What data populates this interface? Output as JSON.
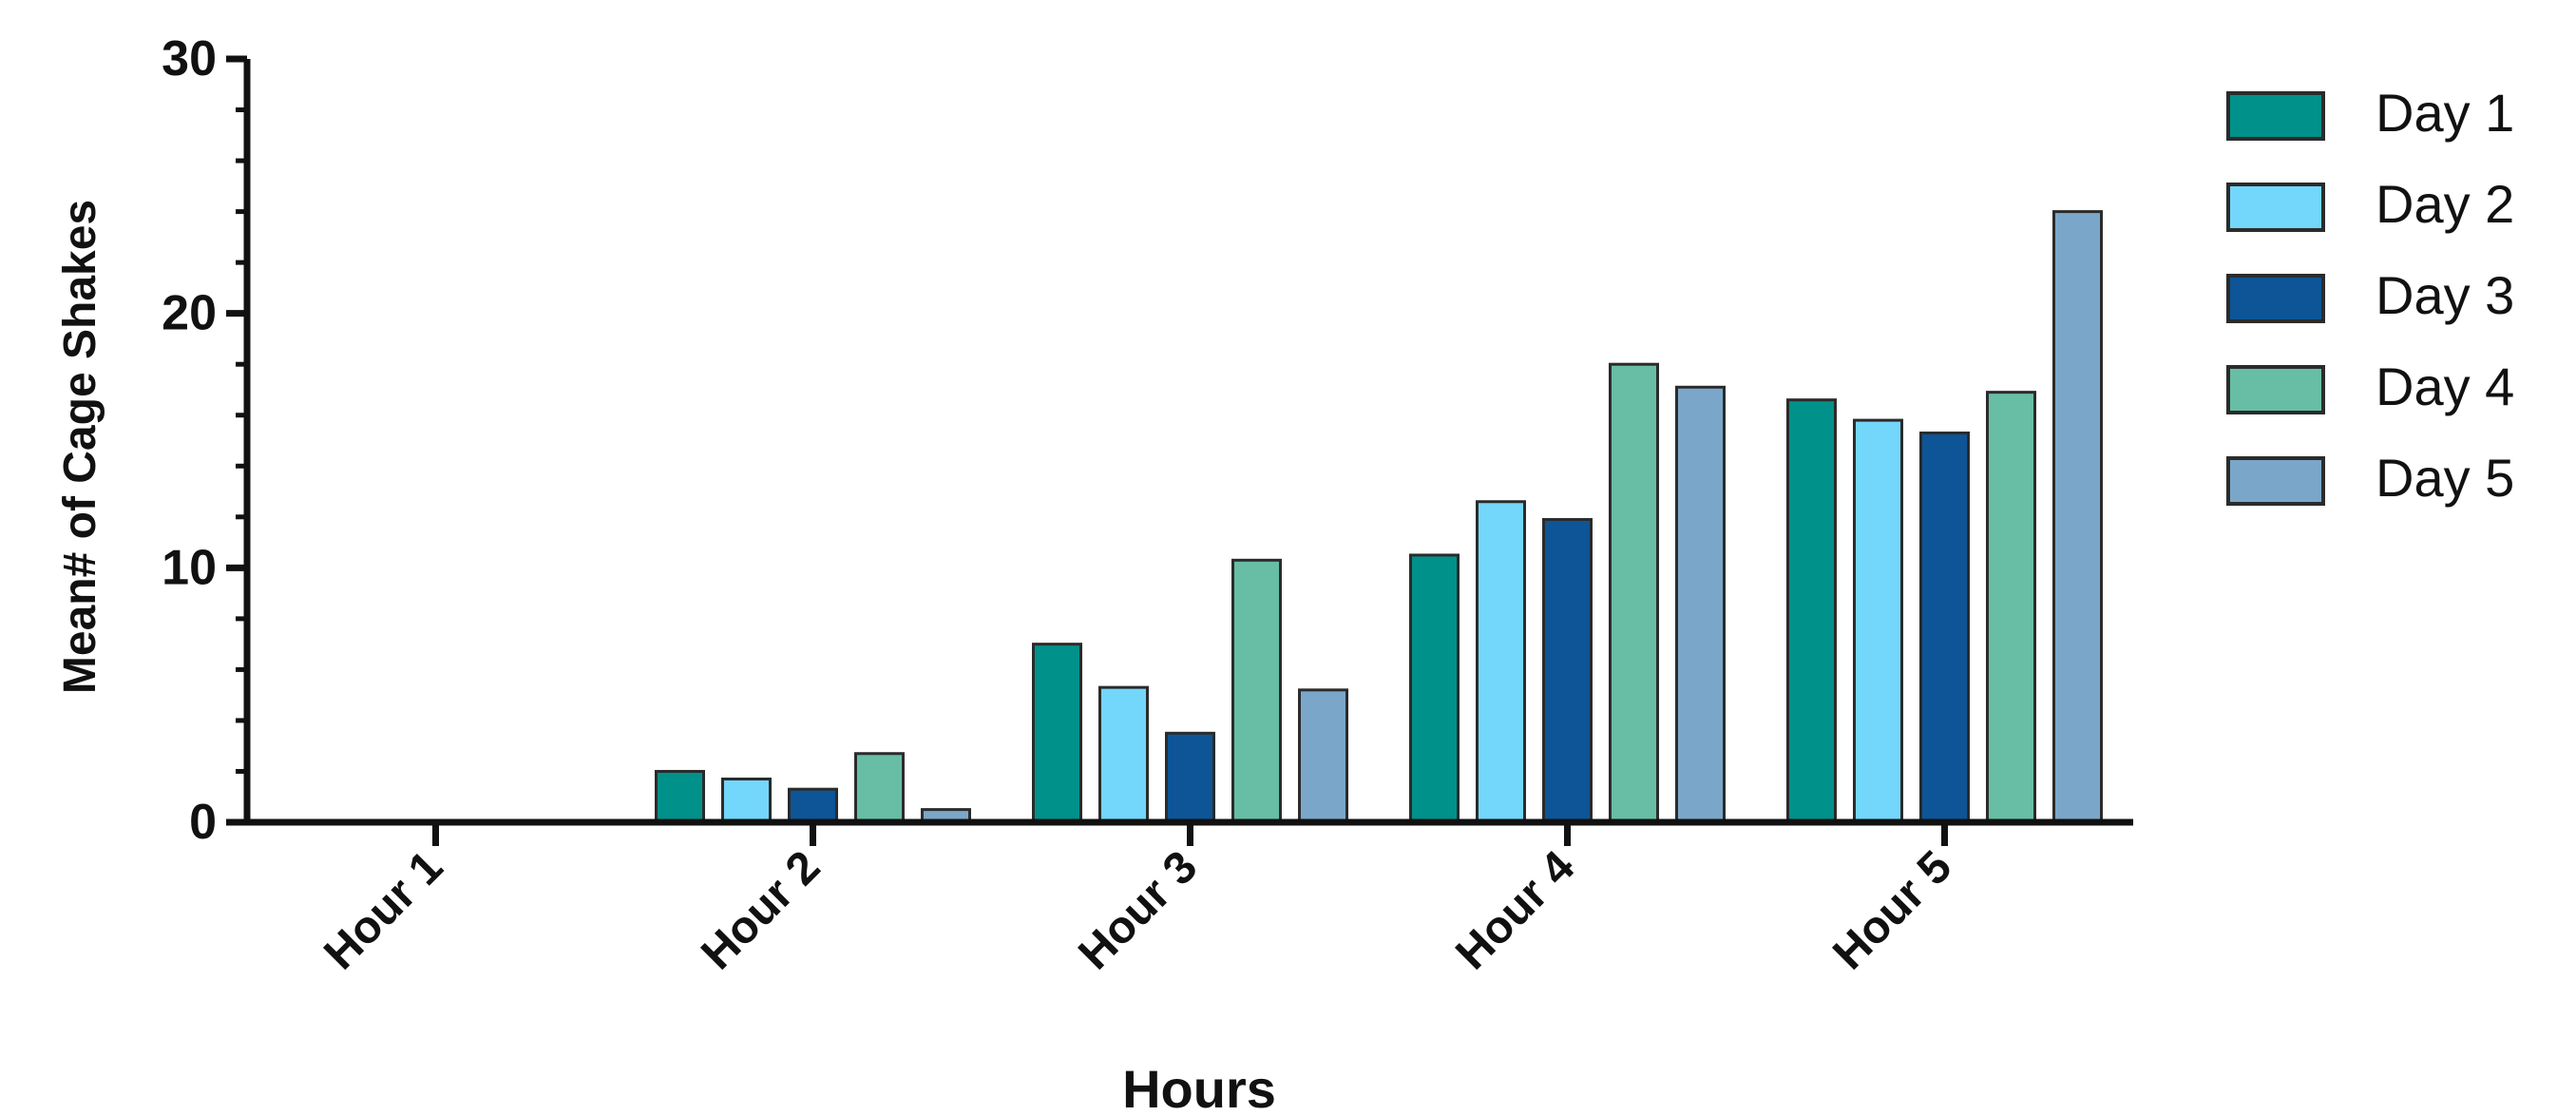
{
  "chart_data": {
    "type": "bar",
    "title": "",
    "xlabel": "Hours",
    "ylabel": "Mean# of Cage Shakes",
    "ylim": [
      0,
      30
    ],
    "yticks": [
      "0",
      "10",
      "20",
      "30"
    ],
    "categories": [
      "Hour 1",
      "Hour 2",
      "Hour 3",
      "Hour 4",
      "Hour 5"
    ],
    "series": [
      {
        "name": "Day 1",
        "color": "#00918a",
        "values": [
          0,
          2.0,
          7.0,
          10.5,
          16.6
        ]
      },
      {
        "name": "Day 2",
        "color": "#73d6fb",
        "values": [
          0,
          1.7,
          5.3,
          12.6,
          15.8
        ]
      },
      {
        "name": "Day 3",
        "color": "#0d5596",
        "values": [
          0,
          1.3,
          3.5,
          11.9,
          15.3
        ]
      },
      {
        "name": "Day 4",
        "color": "#67bea5",
        "values": [
          0,
          2.7,
          10.3,
          18.0,
          16.9
        ]
      },
      {
        "name": "Day 5",
        "color": "#7aa7c9",
        "values": [
          0,
          0.5,
          5.2,
          17.1,
          24.0
        ]
      }
    ],
    "grid": false,
    "legend_position": "right"
  }
}
